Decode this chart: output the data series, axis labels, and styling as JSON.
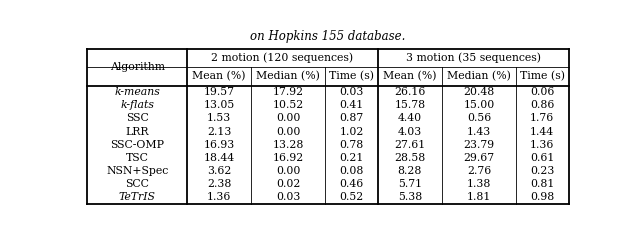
{
  "caption": "on Hopkins 155 database.",
  "col_groups": [
    {
      "label": "2 motion (120 sequences)",
      "subcols": [
        "Mean (%)",
        "Median (%)",
        "Time (s)"
      ]
    },
    {
      "label": "3 motion (35 sequences)",
      "subcols": [
        "Mean (%)",
        "Median (%)",
        "Time (s)"
      ]
    }
  ],
  "algorithms": [
    "k-means",
    "k-flats",
    "SSC",
    "LRR",
    "SSC-OMP",
    "TSC",
    "NSN+Spec",
    "SCC",
    "TeTrIS"
  ],
  "italic_rows": [
    0,
    1,
    8
  ],
  "data": [
    [
      19.57,
      17.92,
      0.03,
      26.16,
      20.48,
      0.06
    ],
    [
      13.05,
      10.52,
      0.41,
      15.78,
      15.0,
      0.86
    ],
    [
      1.53,
      0.0,
      0.87,
      4.4,
      0.56,
      1.76
    ],
    [
      2.13,
      0.0,
      1.02,
      4.03,
      1.43,
      1.44
    ],
    [
      16.93,
      13.28,
      0.78,
      27.61,
      23.79,
      1.36
    ],
    [
      18.44,
      16.92,
      0.21,
      28.58,
      29.67,
      0.61
    ],
    [
      3.62,
      0.0,
      0.08,
      8.28,
      2.76,
      0.23
    ],
    [
      2.38,
      0.02,
      0.46,
      5.71,
      1.38,
      0.81
    ],
    [
      1.36,
      0.03,
      0.52,
      5.38,
      1.81,
      0.98
    ]
  ],
  "col_weights": [
    1.55,
    1.0,
    1.15,
    0.82,
    1.0,
    1.15,
    0.82
  ],
  "bg_color": "#ffffff",
  "text_color": "#000000",
  "line_color": "#000000",
  "fs_caption": 8.5,
  "fs_header": 7.8,
  "fs_data": 7.8,
  "lw_thick": 1.3,
  "lw_thin": 0.6
}
